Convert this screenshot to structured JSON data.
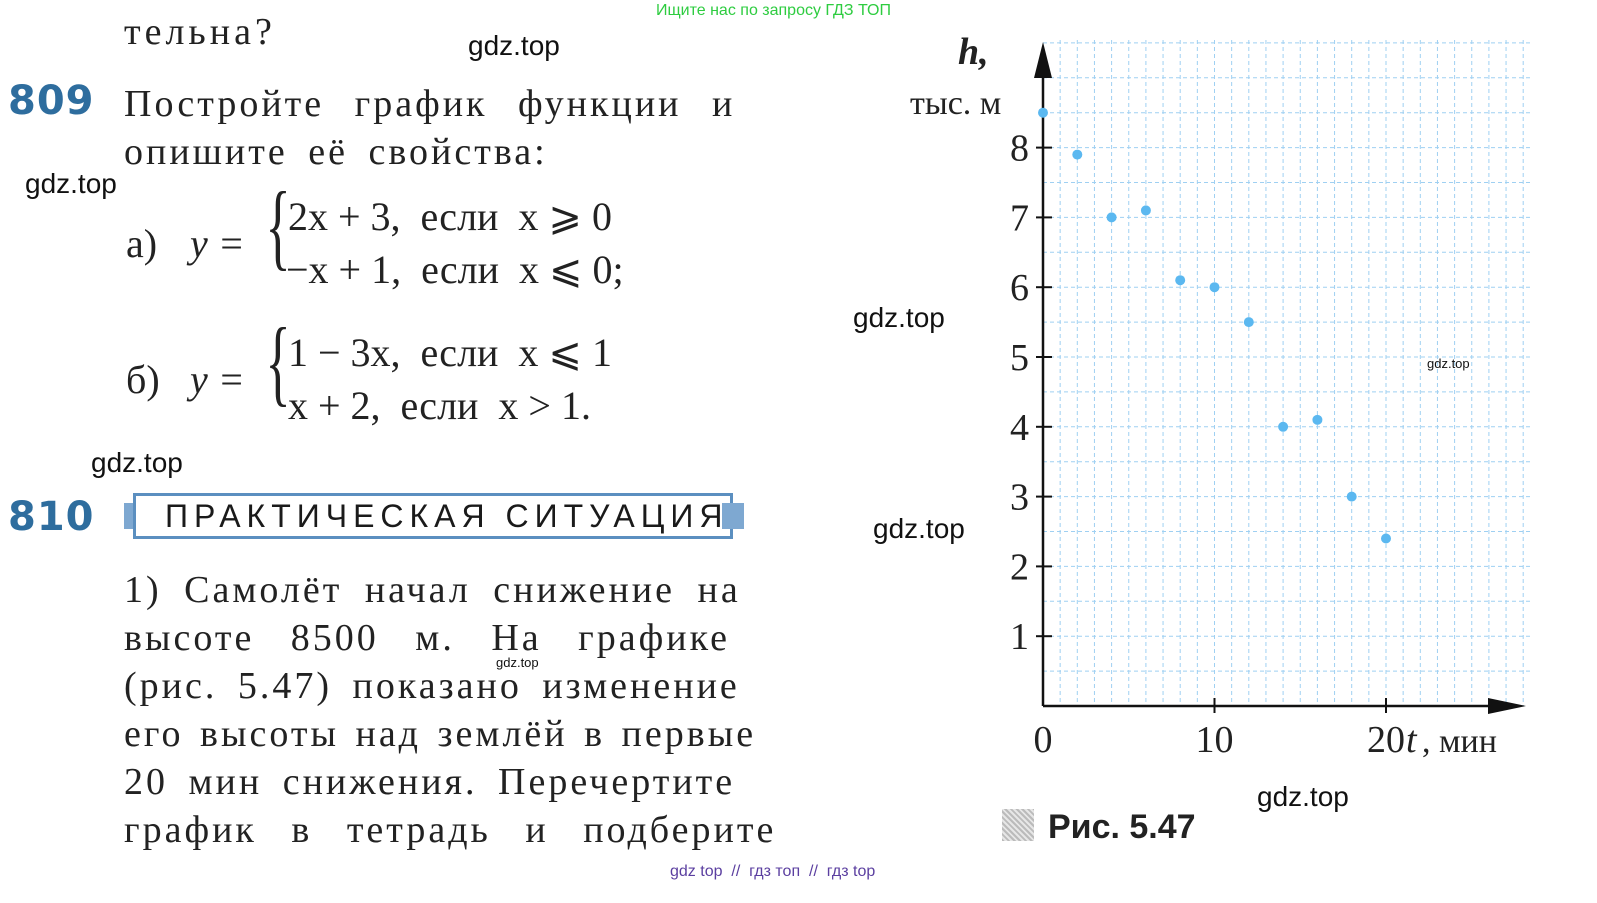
{
  "top_note": "Ищите нас по запросу ГДЗ ТОП",
  "prev_fragment": "тельна?",
  "watermarks": [
    "gdz.top",
    "gdz.top",
    "gdz.top",
    "gdz.top",
    "gdz.top",
    "gdz.top",
    "gdz.top",
    "gdz.top",
    "gdz.top"
  ],
  "problem_809": {
    "number": "809",
    "text_line1": "Постройте график функции и",
    "text_line2": "опишите её свойства:",
    "a": {
      "label": "а)",
      "lhs": "y =",
      "case1": "2x + 3,  если  x ⩾ 0",
      "case2": "−x + 1,  если  x ⩽ 0;"
    },
    "b": {
      "label": "б)",
      "lhs": "y =",
      "case1": "1 − 3x,  если  x ⩽ 1",
      "case2": "x + 2,  если  x > 1."
    }
  },
  "problem_810": {
    "number": "810",
    "badge": "Практическая ситуация",
    "lines": [
      "1) Самолёт начал снижение на",
      "высоте 8500 м. На графике",
      "(рис. 5.47) показано изменение",
      "его высоты над землёй в первые",
      "20 мин снижения. Перечертите",
      "график в тетрадь и подберите"
    ]
  },
  "figure": {
    "caption": "Рис. 5.47"
  },
  "chart_data": {
    "type": "scatter",
    "ylabel": "h, тыс. м",
    "xlabel": "t, мин",
    "x_ticks": [
      "0",
      "10",
      "20"
    ],
    "y_ticks": [
      "1",
      "2",
      "3",
      "4",
      "5",
      "6",
      "7",
      "8"
    ],
    "xlim": [
      0,
      28
    ],
    "ylim": [
      0,
      9
    ],
    "grid": true,
    "point_color": "#5bb8f0",
    "points": [
      {
        "x": 0,
        "y": 8.5
      },
      {
        "x": 2,
        "y": 7.9
      },
      {
        "x": 4,
        "y": 7.0
      },
      {
        "x": 6,
        "y": 7.1
      },
      {
        "x": 8,
        "y": 6.1
      },
      {
        "x": 10,
        "y": 6.0
      },
      {
        "x": 12,
        "y": 5.5
      },
      {
        "x": 14,
        "y": 4.0
      },
      {
        "x": 16,
        "y": 4.1
      },
      {
        "x": 18,
        "y": 3.0
      },
      {
        "x": 20,
        "y": 2.4
      }
    ]
  },
  "footer": "gdz top  //  гдз топ  //  гдз top"
}
